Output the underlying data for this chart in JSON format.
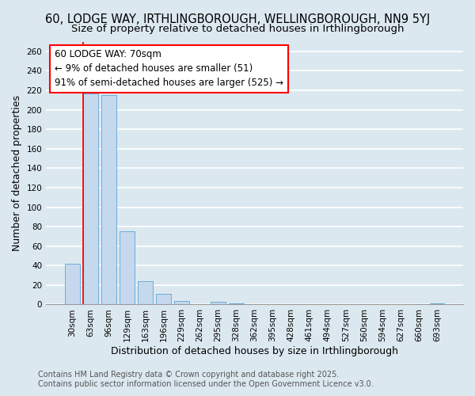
{
  "title": "60, LODGE WAY, IRTHLINGBOROUGH, WELLINGBOROUGH, NN9 5YJ",
  "subtitle": "Size of property relative to detached houses in Irthlingborough",
  "xlabel": "Distribution of detached houses by size in Irthlingborough",
  "ylabel": "Number of detached properties",
  "bar_labels": [
    "30sqm",
    "63sqm",
    "96sqm",
    "129sqm",
    "163sqm",
    "196sqm",
    "229sqm",
    "262sqm",
    "295sqm",
    "328sqm",
    "362sqm",
    "395sqm",
    "428sqm",
    "461sqm",
    "494sqm",
    "527sqm",
    "560sqm",
    "594sqm",
    "627sqm",
    "660sqm",
    "693sqm"
  ],
  "bar_values": [
    42,
    217,
    215,
    75,
    24,
    11,
    4,
    0,
    3,
    1,
    0,
    0,
    0,
    0,
    0,
    0,
    0,
    0,
    0,
    0,
    1
  ],
  "bar_color": "#c5d8ed",
  "bar_edgecolor": "#6aaed6",
  "background_color": "#dce8f0",
  "plot_bg_color": "#dce8f0",
  "grid_color": "#ffffff",
  "ylim": [
    0,
    270
  ],
  "yticks": [
    0,
    20,
    40,
    60,
    80,
    100,
    120,
    140,
    160,
    180,
    200,
    220,
    240,
    260
  ],
  "redline_label": "60 LODGE WAY: 70sqm",
  "annotation_line1": "← 9% of detached houses are smaller (51)",
  "annotation_line2": "91% of semi-detached houses are larger (525) →",
  "footer1": "Contains HM Land Registry data © Crown copyright and database right 2025.",
  "footer2": "Contains public sector information licensed under the Open Government Licence v3.0.",
  "title_fontsize": 10.5,
  "subtitle_fontsize": 9.5,
  "axis_label_fontsize": 9,
  "tick_fontsize": 7.5,
  "annotation_fontsize": 8.5,
  "footer_fontsize": 7
}
